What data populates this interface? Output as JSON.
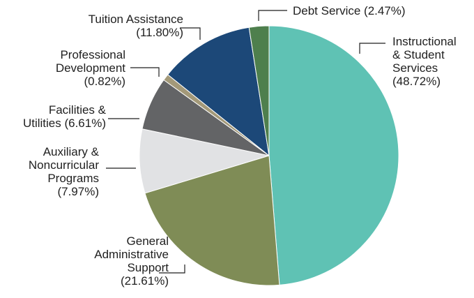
{
  "chart_data": {
    "type": "pie",
    "title": "",
    "slices": [
      {
        "label": "Instructional & Student Services",
        "lines": [
          "Instructional",
          "& Student",
          "Services",
          "(48.72%)"
        ],
        "value": 48.72,
        "color": "#5fc2b4"
      },
      {
        "label": "General Administrative Support",
        "lines": [
          "General",
          "Administrative",
          "Support",
          "(21.61%)"
        ],
        "value": 21.61,
        "color": "#7f8c56"
      },
      {
        "label": "Auxiliary & Noncurricular Programs",
        "lines": [
          "Auxiliary &",
          "Noncurricular",
          "Programs",
          "(7.97%)"
        ],
        "value": 7.97,
        "color": "#e1e2e4"
      },
      {
        "label": "Facilities & Utilities",
        "lines": [
          "Facilities &",
          "Utilities (6.61%)"
        ],
        "value": 6.61,
        "color": "#636466"
      },
      {
        "label": "Professional Development",
        "lines": [
          "Professional",
          "Development",
          "(0.82%)"
        ],
        "value": 0.82,
        "color": "#a39979"
      },
      {
        "label": "Tuition Assistance",
        "lines": [
          "Tuition Assistance",
          "(11.80%)"
        ],
        "value": 11.8,
        "color": "#1c4878"
      },
      {
        "label": "Debt Service",
        "lines": [
          "Debt Service (2.47%)"
        ],
        "value": 2.47,
        "color": "#4e7f4d"
      }
    ]
  }
}
